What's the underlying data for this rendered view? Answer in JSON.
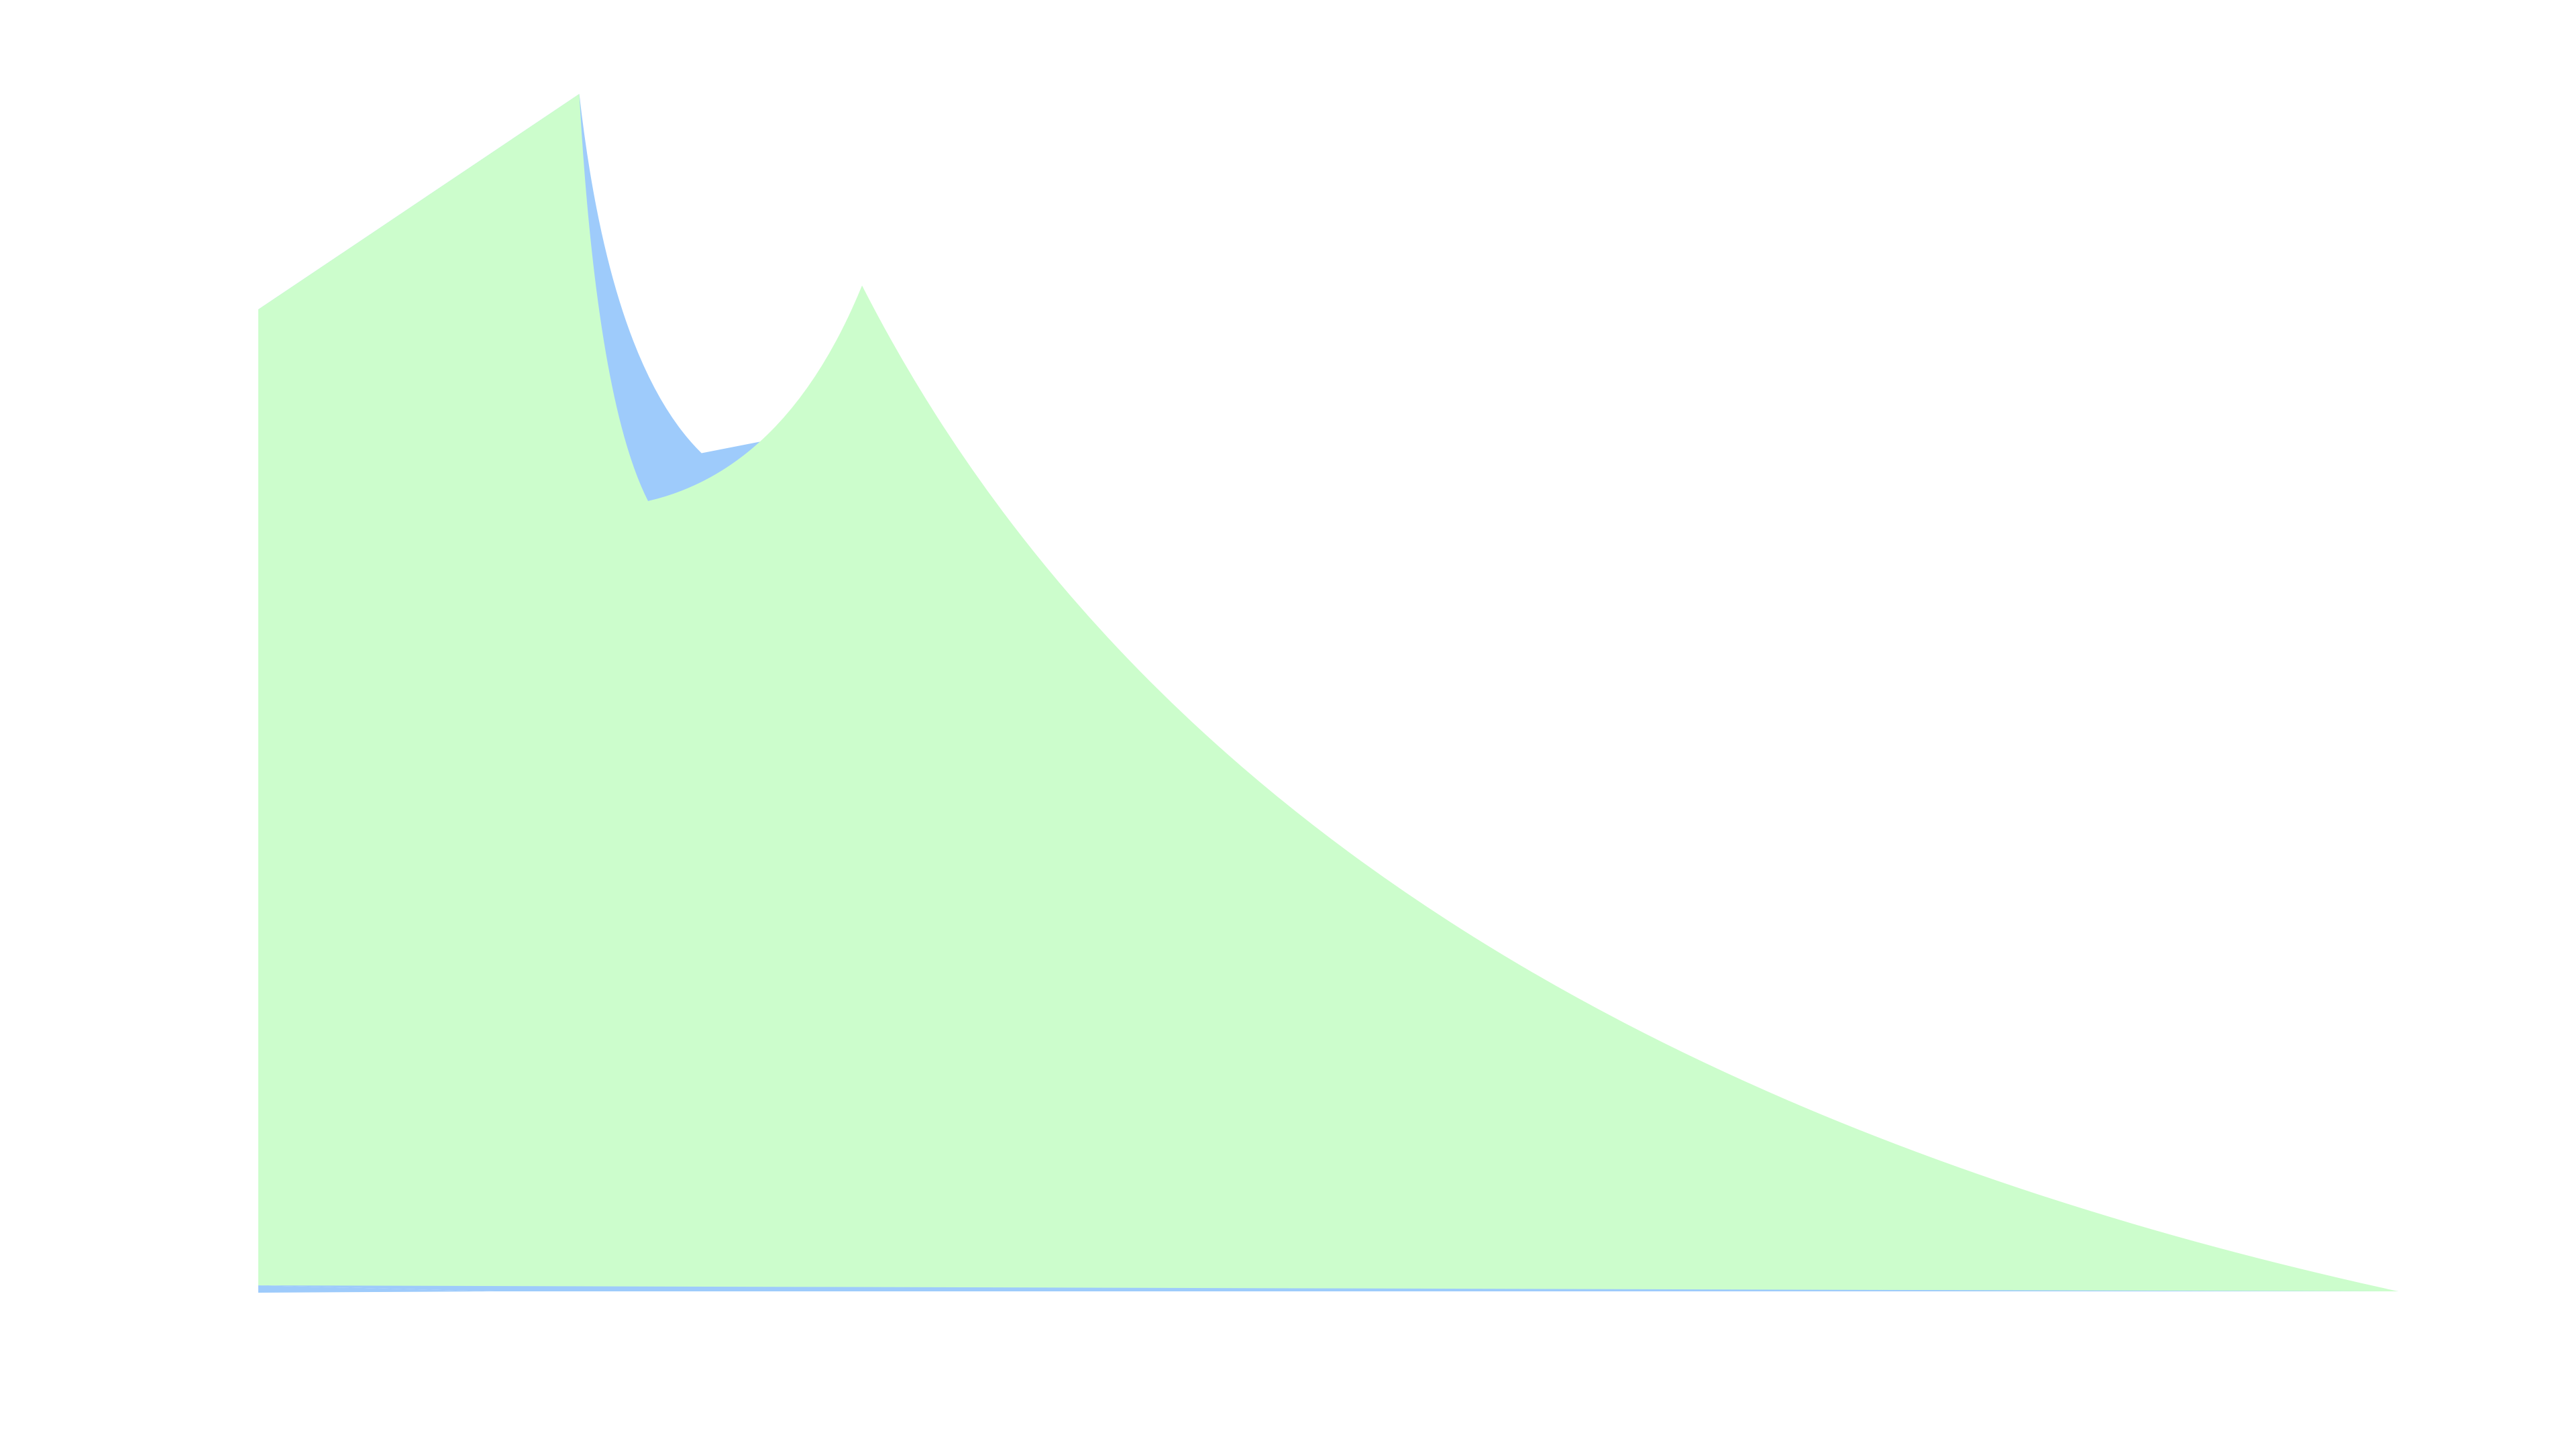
{
  "chart_data": {
    "type": "area",
    "title": "",
    "xlabel": "",
    "ylabel": "",
    "xlim": [
      0,
      28
    ],
    "ylim": [
      0,
      100
    ],
    "grid": false,
    "legend": "none",
    "axes_visible": false,
    "series": [
      {
        "color": "#9ecbfb",
        "points": [
          [
            0,
            0.5
          ],
          [
            3.1,
            0
          ],
          [
            28,
            0
          ]
        ],
        "upper": [
          [
            0,
            82
          ],
          [
            4.2,
            100
          ],
          [
            5.8,
            70
          ],
          [
            7.4,
            72
          ],
          [
            28,
            0
          ]
        ],
        "upper_curves": [
          "straight",
          "concave-up",
          "straight",
          "concave-up"
        ]
      },
      {
        "color": "#ccfdcc",
        "lower": [
          [
            0,
            0.5
          ],
          [
            28,
            0
          ]
        ],
        "upper": [
          [
            0,
            82
          ],
          [
            4.2,
            100
          ],
          [
            5.1,
            66
          ],
          [
            7.9,
            84
          ],
          [
            28,
            0
          ]
        ],
        "upper_curves": [
          "straight",
          "concave-up",
          "concave-down",
          "concave-up"
        ]
      }
    ]
  }
}
